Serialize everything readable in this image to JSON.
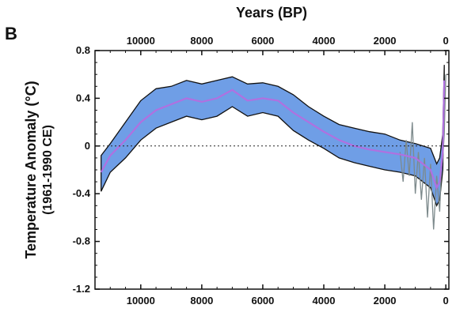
{
  "panel_label": "B",
  "chart_data": {
    "type": "area",
    "title": "",
    "top_xlabel": "Years (BP)",
    "ylabel": "Temperature Anomaly (°C)",
    "ylabel_sub": "(1961-1990 CE)",
    "x_reversed": true,
    "xlim": [
      11500,
      -100
    ],
    "ylim": [
      -1.2,
      0.8
    ],
    "xticks": [
      10000,
      8000,
      6000,
      4000,
      2000,
      0
    ],
    "xtick_labels": [
      "10000",
      "8000",
      "6000",
      "4000",
      "2000",
      "0"
    ],
    "yticks": [
      0.8,
      0.4,
      0,
      -0.4,
      -0.8,
      -1.2
    ],
    "ytick_labels": [
      "0.8",
      "0.4",
      "0",
      "-0.4",
      "-0.8",
      "-1.2"
    ],
    "zero_line": "dotted",
    "grid": false,
    "colors": {
      "band": "#6f9ee6",
      "band_edge": "#111111",
      "mean": "#b070e0",
      "hires": "#7d8a8c",
      "axis": "#111111"
    },
    "series": [
      {
        "role": "holocene-reconstruction",
        "x": [
          11300,
          11000,
          10500,
          10000,
          9500,
          9000,
          8500,
          8000,
          7500,
          7000,
          6500,
          6000,
          5500,
          5000,
          4500,
          4000,
          3500,
          3000,
          2500,
          2000,
          1500,
          1000,
          500,
          300,
          200,
          100,
          50
        ],
        "mean": [
          -0.22,
          -0.08,
          0.05,
          0.2,
          0.3,
          0.35,
          0.4,
          0.37,
          0.4,
          0.47,
          0.38,
          0.4,
          0.38,
          0.28,
          0.2,
          0.12,
          0.05,
          0.0,
          -0.03,
          -0.05,
          -0.07,
          -0.1,
          -0.2,
          -0.35,
          -0.3,
          -0.05,
          0.55
        ],
        "upper": [
          -0.08,
          0.02,
          0.2,
          0.38,
          0.48,
          0.5,
          0.55,
          0.52,
          0.55,
          0.58,
          0.52,
          0.53,
          0.5,
          0.43,
          0.33,
          0.25,
          0.18,
          0.15,
          0.12,
          0.1,
          0.05,
          0.02,
          -0.02,
          -0.15,
          -0.1,
          0.1,
          0.68
        ],
        "lower": [
          -0.38,
          -0.22,
          -0.1,
          0.05,
          0.15,
          0.2,
          0.25,
          0.22,
          0.25,
          0.33,
          0.25,
          0.28,
          0.25,
          0.13,
          0.05,
          -0.02,
          -0.1,
          -0.14,
          -0.17,
          -0.2,
          -0.22,
          -0.25,
          -0.35,
          -0.5,
          -0.45,
          -0.2,
          0.42
        ]
      },
      {
        "role": "high-resolution-record",
        "x": [
          1500,
          1400,
          1300,
          1200,
          1100,
          1000,
          900,
          800,
          700,
          600,
          500,
          400,
          300,
          200,
          150,
          100,
          50,
          0
        ],
        "y": [
          -0.05,
          -0.3,
          0.05,
          -0.25,
          0.2,
          -0.4,
          -0.05,
          -0.45,
          -0.1,
          -0.6,
          -0.15,
          -0.7,
          -0.25,
          -0.55,
          -0.2,
          -0.1,
          0.1,
          0.6
        ]
      }
    ]
  }
}
